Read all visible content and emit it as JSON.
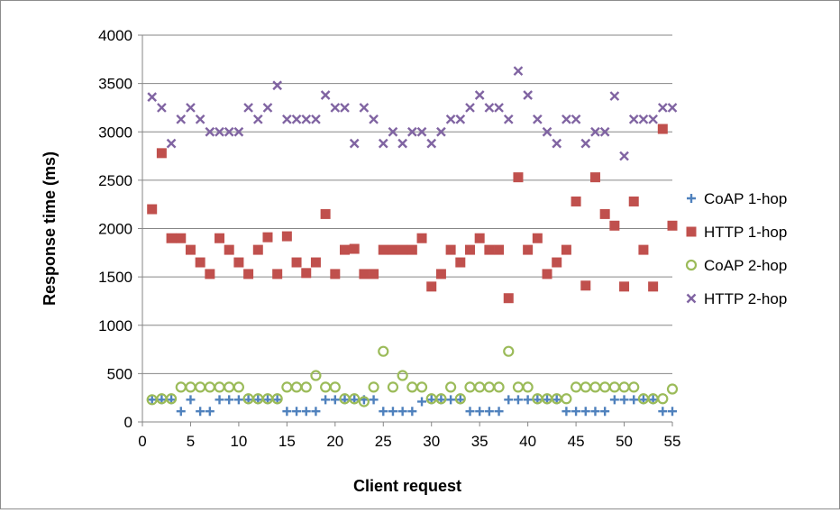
{
  "chart_data": {
    "type": "scatter",
    "title": "",
    "xlabel": "Client request",
    "ylabel": "Response time (ms)",
    "xlim": [
      0,
      55
    ],
    "ylim": [
      0,
      4000
    ],
    "xticks": [
      "0",
      "5",
      "10",
      "15",
      "20",
      "25",
      "30",
      "35",
      "40",
      "45",
      "50",
      "55"
    ],
    "yticks": [
      "0",
      "500",
      "1000",
      "1500",
      "2000",
      "2500",
      "3000",
      "3500",
      "4000"
    ],
    "grid": "horizontal",
    "legend_position": "right",
    "x": [
      1,
      2,
      3,
      4,
      5,
      6,
      7,
      8,
      9,
      10,
      11,
      12,
      13,
      14,
      15,
      16,
      17,
      18,
      19,
      20,
      21,
      22,
      23,
      24,
      25,
      26,
      27,
      28,
      29,
      30,
      31,
      32,
      33,
      34,
      35,
      36,
      37,
      38,
      39,
      40,
      41,
      42,
      43,
      44,
      45,
      46,
      47,
      48,
      49,
      50,
      51,
      52,
      53,
      54,
      55
    ],
    "series": [
      {
        "name": "CoAP 1-hop",
        "marker": "plus",
        "color": "#4f81bd",
        "values": [
          230,
          230,
          230,
          110,
          230,
          110,
          110,
          230,
          230,
          230,
          230,
          230,
          230,
          230,
          110,
          110,
          110,
          110,
          230,
          230,
          230,
          230,
          230,
          230,
          110,
          110,
          110,
          110,
          210,
          230,
          230,
          230,
          230,
          110,
          110,
          110,
          110,
          230,
          230,
          230,
          230,
          230,
          230,
          110,
          110,
          110,
          110,
          110,
          230,
          230,
          230,
          230,
          230,
          110,
          110
        ]
      },
      {
        "name": "HTTP 1-hop",
        "marker": "square",
        "color": "#c0504d",
        "values": [
          2200,
          2780,
          1900,
          1900,
          1780,
          1650,
          1530,
          1900,
          1780,
          1650,
          1530,
          1780,
          1910,
          1530,
          1920,
          1650,
          1540,
          1650,
          2150,
          1530,
          1780,
          1790,
          1530,
          1530,
          1780,
          1780,
          1780,
          1780,
          1900,
          1400,
          1530,
          1780,
          1650,
          1780,
          1900,
          1780,
          1780,
          1280,
          2530,
          1780,
          1900,
          1530,
          1650,
          1780,
          2280,
          1410,
          2530,
          2150,
          2030,
          1400,
          2280,
          1780,
          1400,
          3030,
          2030
        ]
      },
      {
        "name": "CoAP 2-hop",
        "marker": "circle",
        "color": "#9bbb59",
        "values": [
          230,
          240,
          240,
          360,
          360,
          360,
          360,
          360,
          360,
          360,
          240,
          240,
          240,
          240,
          360,
          360,
          360,
          480,
          360,
          360,
          240,
          240,
          210,
          360,
          730,
          360,
          480,
          360,
          360,
          240,
          240,
          360,
          240,
          360,
          360,
          360,
          360,
          730,
          360,
          360,
          240,
          240,
          240,
          240,
          360,
          360,
          360,
          360,
          360,
          360,
          360,
          240,
          240,
          240,
          340
        ]
      },
      {
        "name": "HTTP 2-hop",
        "marker": "x",
        "color": "#8064a2",
        "values": [
          3360,
          3250,
          2880,
          3130,
          3250,
          3130,
          3000,
          3000,
          3000,
          3000,
          3250,
          3130,
          3250,
          3480,
          3130,
          3130,
          3130,
          3130,
          3380,
          3250,
          3250,
          2880,
          3250,
          3130,
          2880,
          3000,
          2880,
          3000,
          3000,
          2880,
          3000,
          3130,
          3130,
          3250,
          3380,
          3250,
          3250,
          3130,
          3630,
          3380,
          3130,
          3000,
          2880,
          3130,
          3130,
          2880,
          3000,
          3000,
          3370,
          2750,
          3130,
          3130,
          3130,
          3250,
          3250
        ]
      }
    ]
  }
}
